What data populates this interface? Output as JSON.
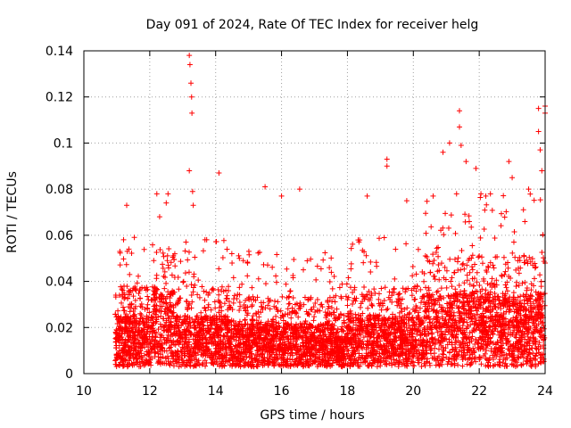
{
  "chart_data": {
    "type": "scatter",
    "title": "Day 091 of 2024, Rate Of TEC Index for receiver helg",
    "xlabel": "GPS time / hours",
    "ylabel": "ROTI / TECUs",
    "xlim": [
      10,
      24
    ],
    "ylim": [
      0,
      0.14
    ],
    "x_ticks": [
      10,
      12,
      14,
      16,
      18,
      20,
      22,
      24
    ],
    "x_tick_labels": [
      "10",
      "12",
      "14",
      "16",
      "18",
      "20",
      "22",
      "24"
    ],
    "y_ticks": [
      0,
      0.02,
      0.04,
      0.06,
      0.08,
      0.1,
      0.12,
      0.14
    ],
    "y_tick_labels": [
      "0",
      "0.02",
      "0.04",
      "0.06",
      "0.08",
      "0.1",
      "0.12",
      "0.14"
    ],
    "grid": true,
    "marker": "+",
    "color": "#ff0000",
    "series": [
      {
        "name": "ROTI",
        "x_range": [
          10.95,
          24.0
        ],
        "typical_range": [
          0.003,
          0.035
        ],
        "peaks": [
          {
            "x": 11.3,
            "y": 0.073
          },
          {
            "x": 12.3,
            "y": 0.068
          },
          {
            "x": 12.5,
            "y": 0.074
          },
          {
            "x": 13.2,
            "y": 0.138
          },
          {
            "x": 13.22,
            "y": 0.134
          },
          {
            "x": 13.25,
            "y": 0.126
          },
          {
            "x": 13.27,
            "y": 0.12
          },
          {
            "x": 13.28,
            "y": 0.113
          },
          {
            "x": 13.2,
            "y": 0.088
          },
          {
            "x": 13.3,
            "y": 0.079
          },
          {
            "x": 13.32,
            "y": 0.073
          },
          {
            "x": 14.1,
            "y": 0.087
          },
          {
            "x": 15.5,
            "y": 0.081
          },
          {
            "x": 16.0,
            "y": 0.077
          },
          {
            "x": 16.55,
            "y": 0.08
          },
          {
            "x": 18.6,
            "y": 0.077
          },
          {
            "x": 19.2,
            "y": 0.093
          },
          {
            "x": 19.2,
            "y": 0.09
          },
          {
            "x": 19.8,
            "y": 0.075
          },
          {
            "x": 20.6,
            "y": 0.077
          },
          {
            "x": 20.9,
            "y": 0.096
          },
          {
            "x": 21.1,
            "y": 0.1
          },
          {
            "x": 21.4,
            "y": 0.114
          },
          {
            "x": 21.4,
            "y": 0.107
          },
          {
            "x": 21.45,
            "y": 0.099
          },
          {
            "x": 21.6,
            "y": 0.092
          },
          {
            "x": 21.9,
            "y": 0.089
          },
          {
            "x": 22.2,
            "y": 0.077
          },
          {
            "x": 22.9,
            "y": 0.092
          },
          {
            "x": 23.0,
            "y": 0.085
          },
          {
            "x": 23.5,
            "y": 0.08
          },
          {
            "x": 23.8,
            "y": 0.115
          },
          {
            "x": 23.8,
            "y": 0.105
          },
          {
            "x": 23.85,
            "y": 0.097
          },
          {
            "x": 23.9,
            "y": 0.088
          },
          {
            "x": 24.0,
            "y": 0.113
          },
          {
            "x": 24.0,
            "y": 0.116
          }
        ]
      }
    ]
  }
}
